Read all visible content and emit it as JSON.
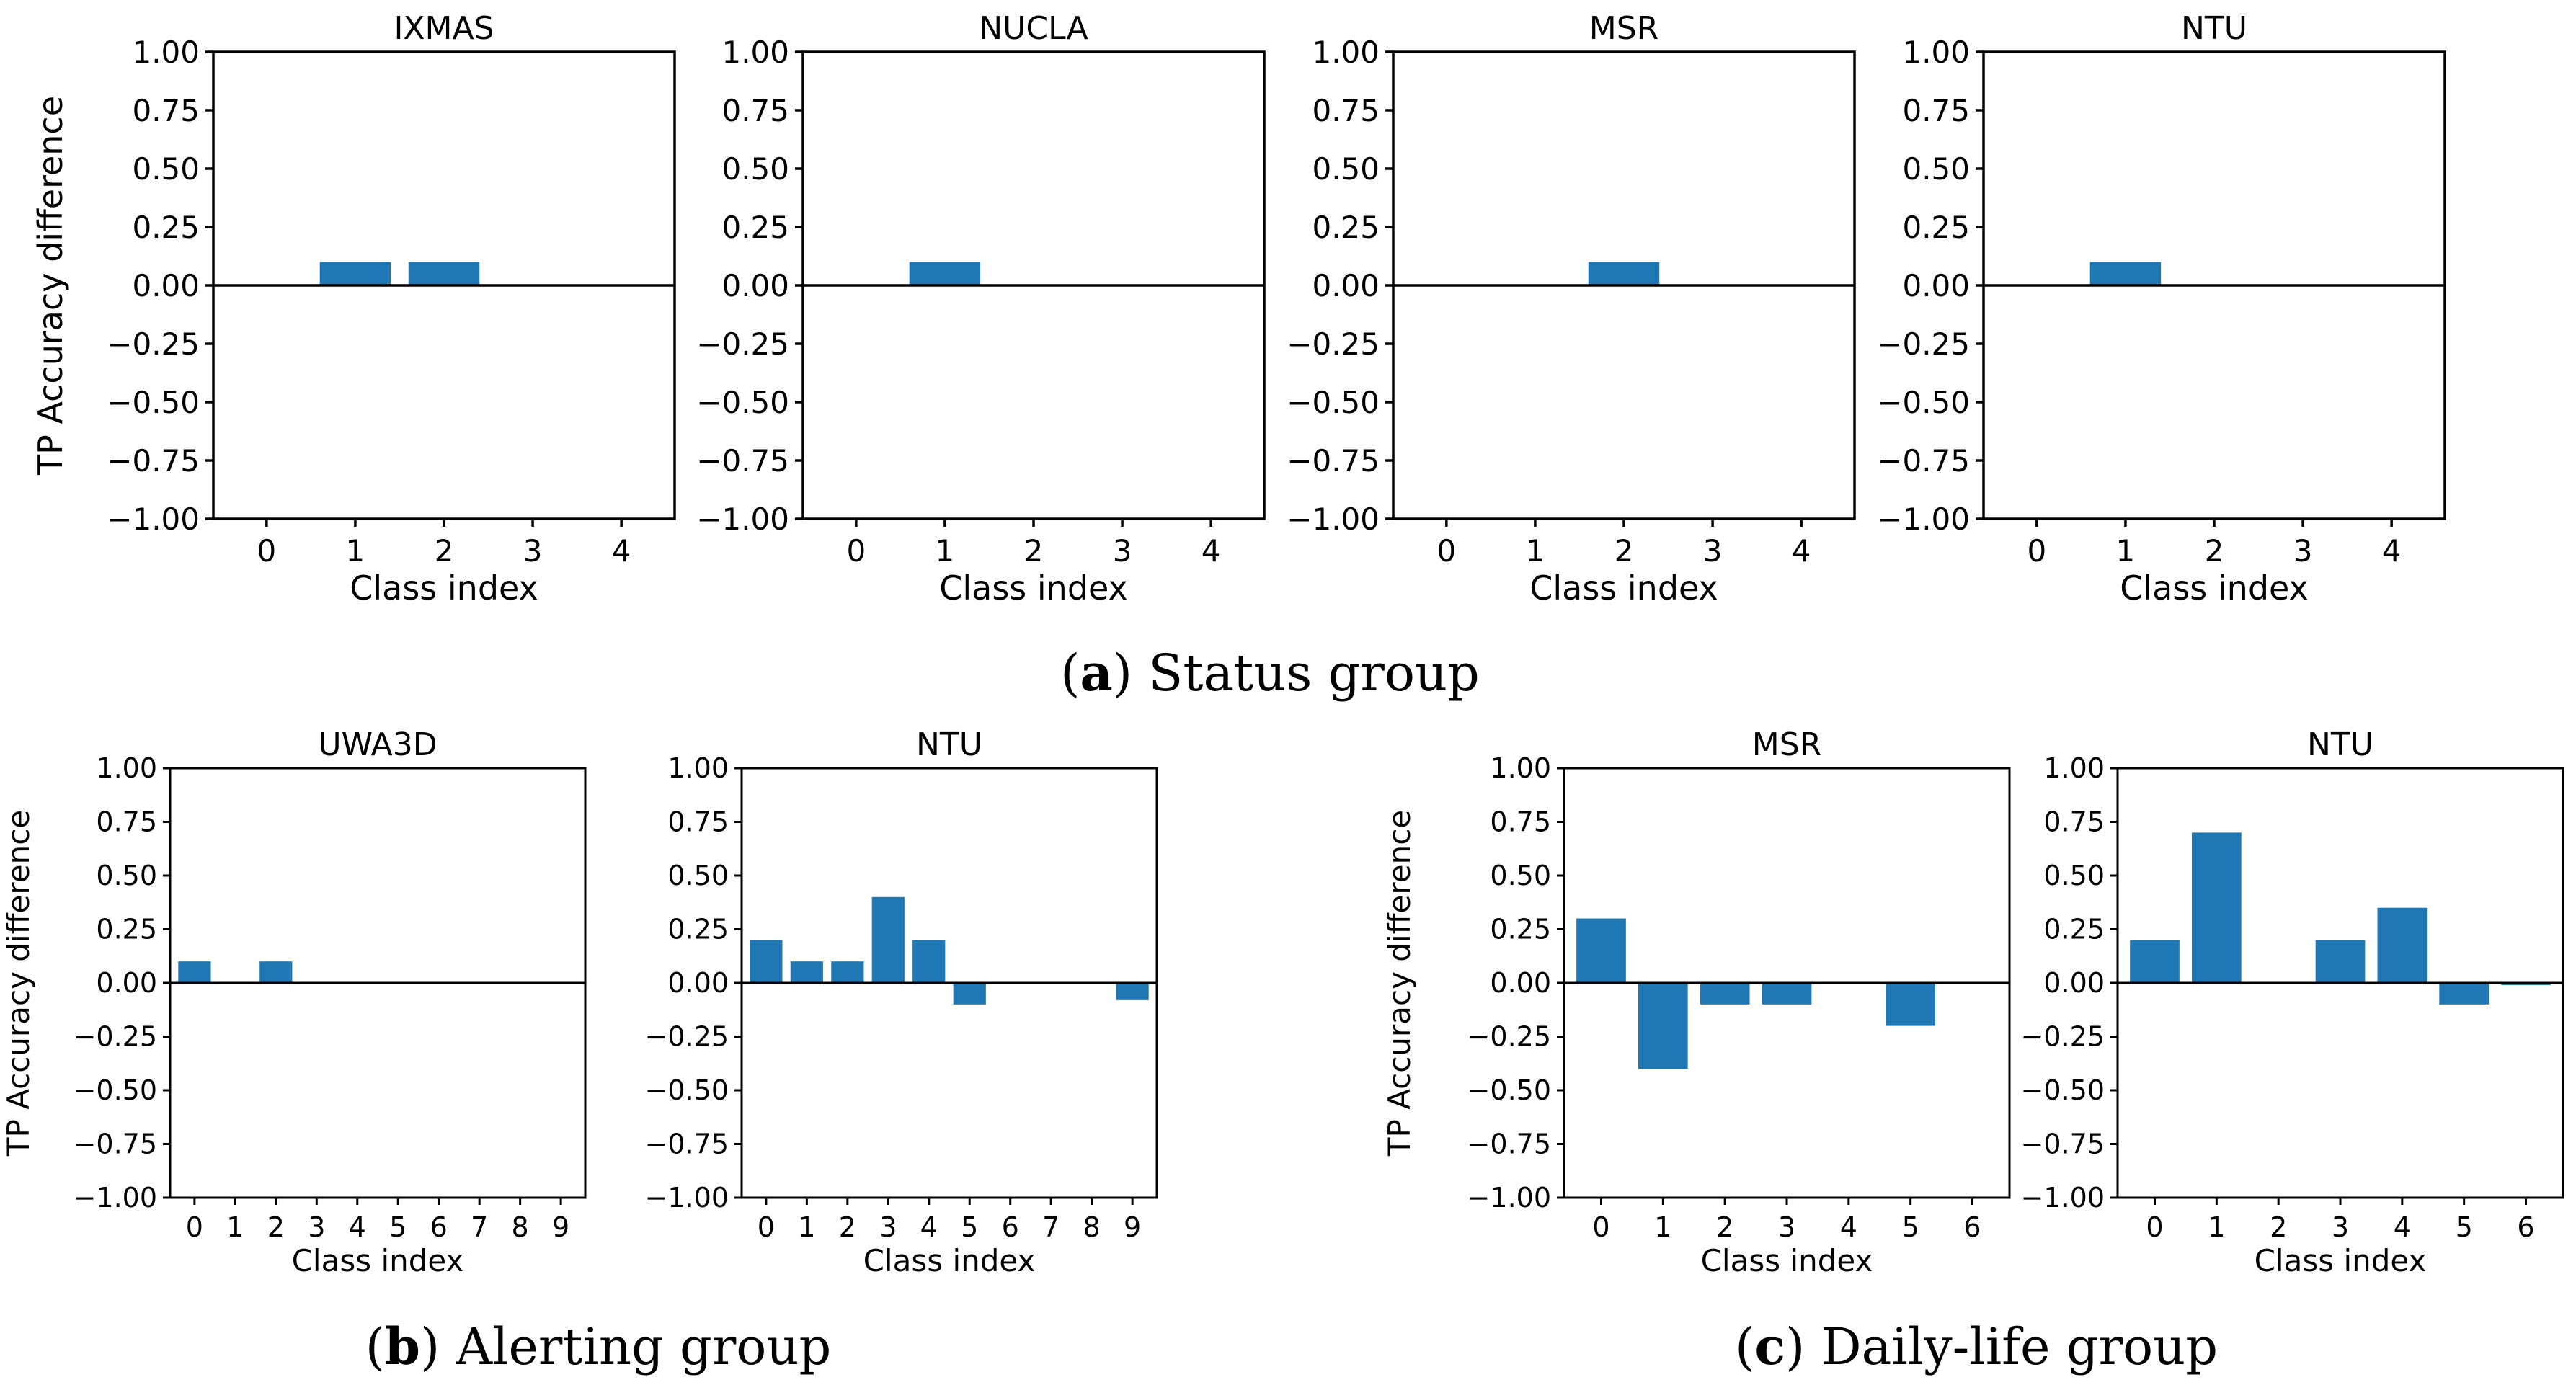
{
  "colors": {
    "bar": "#1f77b4",
    "axis": "#000000",
    "background": "#ffffff"
  },
  "captions": {
    "a": {
      "letter": "a",
      "text": "Status group"
    },
    "b": {
      "letter": "b",
      "text": "Alerting group"
    },
    "c": {
      "letter": "c",
      "text": "Daily-life group"
    }
  },
  "chart_data": [
    {
      "type": "bar",
      "group": "a",
      "title": "IXMAS",
      "xlabel": "Class index",
      "ylabel": "TP Accuracy difference",
      "categories": [
        "0",
        "1",
        "2",
        "3",
        "4"
      ],
      "values": [
        0,
        0.1,
        0.1,
        0,
        0
      ],
      "ylim": [
        -1.0,
        1.0
      ],
      "yticks": [
        "1.00",
        "0.75",
        "0.50",
        "0.25",
        "0.00",
        "−0.25",
        "−0.50",
        "−0.75",
        "−1.00"
      ]
    },
    {
      "type": "bar",
      "group": "a",
      "title": "NUCLA",
      "xlabel": "Class index",
      "ylabel": "",
      "categories": [
        "0",
        "1",
        "2",
        "3",
        "4"
      ],
      "values": [
        0,
        0.1,
        0,
        0,
        0
      ],
      "ylim": [
        -1.0,
        1.0
      ],
      "yticks": [
        "1.00",
        "0.75",
        "0.50",
        "0.25",
        "0.00",
        "−0.25",
        "−0.50",
        "−0.75",
        "−1.00"
      ]
    },
    {
      "type": "bar",
      "group": "a",
      "title": "MSR",
      "xlabel": "Class index",
      "ylabel": "",
      "categories": [
        "0",
        "1",
        "2",
        "3",
        "4"
      ],
      "values": [
        0,
        0,
        0.1,
        0,
        0
      ],
      "ylim": [
        -1.0,
        1.0
      ],
      "yticks": [
        "1.00",
        "0.75",
        "0.50",
        "0.25",
        "0.00",
        "−0.25",
        "−0.50",
        "−0.75",
        "−1.00"
      ]
    },
    {
      "type": "bar",
      "group": "a",
      "title": "NTU",
      "xlabel": "Class index",
      "ylabel": "",
      "categories": [
        "0",
        "1",
        "2",
        "3",
        "4"
      ],
      "values": [
        0,
        0.1,
        0,
        0,
        0
      ],
      "ylim": [
        -1.0,
        1.0
      ],
      "yticks": [
        "1.00",
        "0.75",
        "0.50",
        "0.25",
        "0.00",
        "−0.25",
        "−0.50",
        "−0.75",
        "−1.00"
      ]
    },
    {
      "type": "bar",
      "group": "b",
      "title": "UWA3D",
      "xlabel": "Class index",
      "ylabel": "TP Accuracy difference",
      "categories": [
        "0",
        "1",
        "2",
        "3",
        "4",
        "5",
        "6",
        "7",
        "8",
        "9"
      ],
      "values": [
        0.1,
        0,
        0.1,
        0,
        0,
        0,
        0,
        0,
        0,
        0
      ],
      "ylim": [
        -1.0,
        1.0
      ],
      "yticks": [
        "1.00",
        "0.75",
        "0.50",
        "0.25",
        "0.00",
        "−0.25",
        "−0.50",
        "−0.75",
        "−1.00"
      ]
    },
    {
      "type": "bar",
      "group": "b",
      "title": "NTU",
      "xlabel": "Class index",
      "ylabel": "",
      "categories": [
        "0",
        "1",
        "2",
        "3",
        "4",
        "5",
        "6",
        "7",
        "8",
        "9"
      ],
      "values": [
        0.2,
        0.1,
        0.1,
        0.4,
        0.2,
        -0.1,
        0,
        0,
        0,
        -0.08
      ],
      "ylim": [
        -1.0,
        1.0
      ],
      "yticks": [
        "1.00",
        "0.75",
        "0.50",
        "0.25",
        "0.00",
        "−0.25",
        "−0.50",
        "−0.75",
        "−1.00"
      ]
    },
    {
      "type": "bar",
      "group": "c",
      "title": "MSR",
      "xlabel": "Class index",
      "ylabel": "TP Accuracy difference",
      "categories": [
        "0",
        "1",
        "2",
        "3",
        "4",
        "5",
        "6"
      ],
      "values": [
        0.3,
        -0.4,
        -0.1,
        -0.1,
        0,
        -0.2,
        0
      ],
      "ylim": [
        -1.0,
        1.0
      ],
      "yticks": [
        "1.00",
        "0.75",
        "0.50",
        "0.25",
        "0.00",
        "−0.25",
        "−0.50",
        "−0.75",
        "−1.00"
      ]
    },
    {
      "type": "bar",
      "group": "c",
      "title": "NTU",
      "xlabel": "Class index",
      "ylabel": "",
      "categories": [
        "0",
        "1",
        "2",
        "3",
        "4",
        "5",
        "6"
      ],
      "values": [
        0.2,
        0.7,
        0,
        0.2,
        0.35,
        -0.1,
        -0.01
      ],
      "ylim": [
        -1.0,
        1.0
      ],
      "yticks": [
        "1.00",
        "0.75",
        "0.50",
        "0.25",
        "0.00",
        "−0.25",
        "−0.50",
        "−0.75",
        "−1.00"
      ]
    }
  ]
}
